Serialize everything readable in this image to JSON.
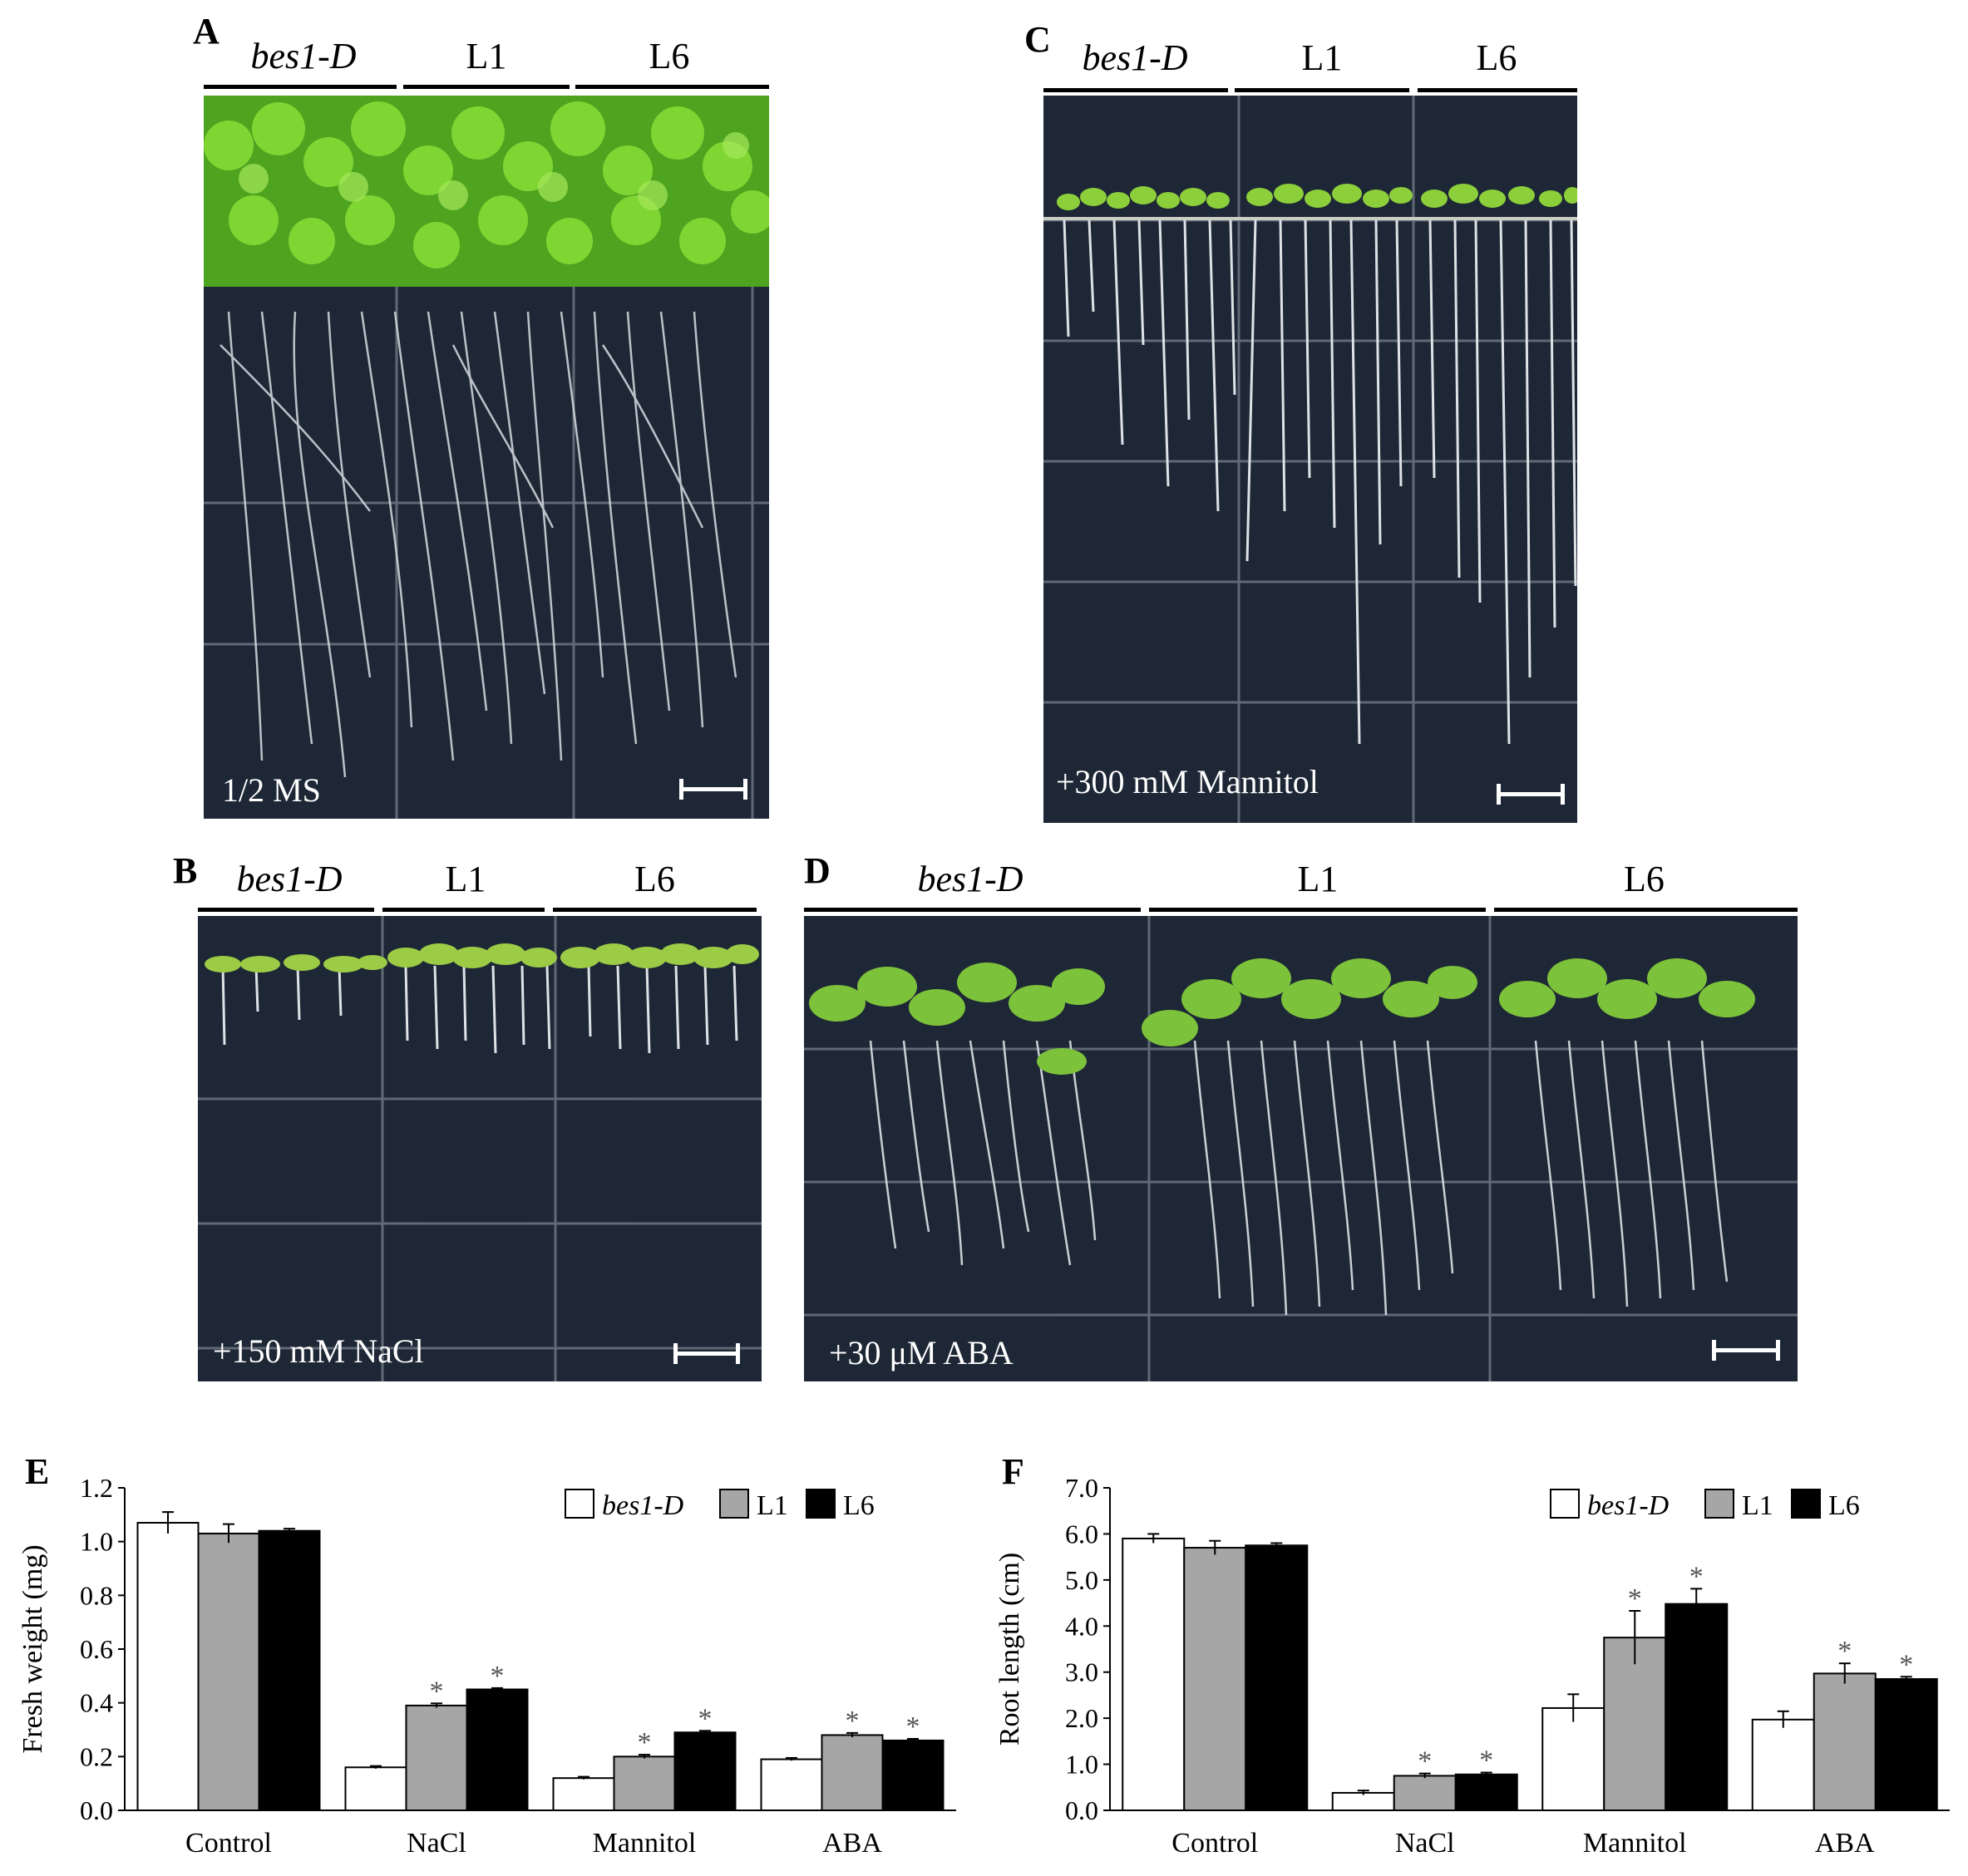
{
  "panels": {
    "A": {
      "letter": "A",
      "genotypes": [
        "bes1-D",
        "L1",
        "L6"
      ],
      "condition": "1/2 MS"
    },
    "B": {
      "letter": "B",
      "genotypes": [
        "bes1-D",
        "L1",
        "L6"
      ],
      "condition": "+150 mM NaCl"
    },
    "C": {
      "letter": "C",
      "genotypes": [
        "bes1-D",
        "L1",
        "L6"
      ],
      "condition": "+300 mM  Mannitol"
    },
    "D": {
      "letter": "D",
      "genotypes": [
        "bes1-D",
        "L1",
        "L6"
      ],
      "condition": "+30 μM ABA"
    }
  },
  "colors": {
    "bes1-D": "#ffffff",
    "L1": "#a6a6a6",
    "L6": "#000000",
    "plate": "#1e2736",
    "leaf": "#6cc02a"
  },
  "chart_data": [
    {
      "panel": "E",
      "type": "bar",
      "categories": [
        "Control",
        "NaCl",
        "Mannitol",
        "ABA"
      ],
      "ylabel": "Fresh weight (mg)",
      "ylim": [
        0,
        1.2
      ],
      "yticks": [
        "0.0",
        "0.2",
        "0.4",
        "0.6",
        "0.8",
        "1.0",
        "1.2"
      ],
      "legend": "top-right",
      "series": [
        {
          "name": "bes1-D",
          "values": [
            1.07,
            0.16,
            0.12,
            0.19
          ],
          "errors": [
            0.04,
            0.005,
            0.005,
            0.005
          ],
          "sig": [
            false,
            false,
            false,
            false
          ]
        },
        {
          "name": "L1",
          "values": [
            1.03,
            0.39,
            0.2,
            0.28
          ],
          "errors": [
            0.035,
            0.008,
            0.007,
            0.008
          ],
          "sig": [
            false,
            true,
            true,
            true
          ]
        },
        {
          "name": "L6",
          "values": [
            1.04,
            0.45,
            0.29,
            0.26
          ],
          "errors": [
            0.008,
            0.005,
            0.006,
            0.006
          ],
          "sig": [
            false,
            true,
            true,
            true
          ]
        }
      ],
      "sig_mark": "*"
    },
    {
      "panel": "F",
      "type": "bar",
      "categories": [
        "Control",
        "NaCl",
        "Mannitol",
        "ABA"
      ],
      "ylabel": "Root length (cm)",
      "ylim": [
        0,
        7
      ],
      "yticks": [
        "0.0",
        "1.0",
        "2.0",
        "3.0",
        "4.0",
        "5.0",
        "6.0",
        "7.0"
      ],
      "legend": "top-right",
      "series": [
        {
          "name": "bes1-D",
          "values": [
            5.9,
            0.38,
            2.22,
            1.97
          ],
          "errors": [
            0.1,
            0.05,
            0.3,
            0.18
          ],
          "sig": [
            false,
            false,
            false,
            false
          ]
        },
        {
          "name": "L1",
          "values": [
            5.7,
            0.75,
            3.75,
            2.97
          ],
          "errors": [
            0.15,
            0.05,
            0.58,
            0.22
          ],
          "sig": [
            false,
            true,
            true,
            true
          ]
        },
        {
          "name": "L6",
          "values": [
            5.75,
            0.78,
            4.48,
            2.85
          ],
          "errors": [
            0.05,
            0.04,
            0.33,
            0.05
          ],
          "sig": [
            false,
            true,
            true,
            true
          ]
        }
      ],
      "sig_mark": "*"
    }
  ]
}
